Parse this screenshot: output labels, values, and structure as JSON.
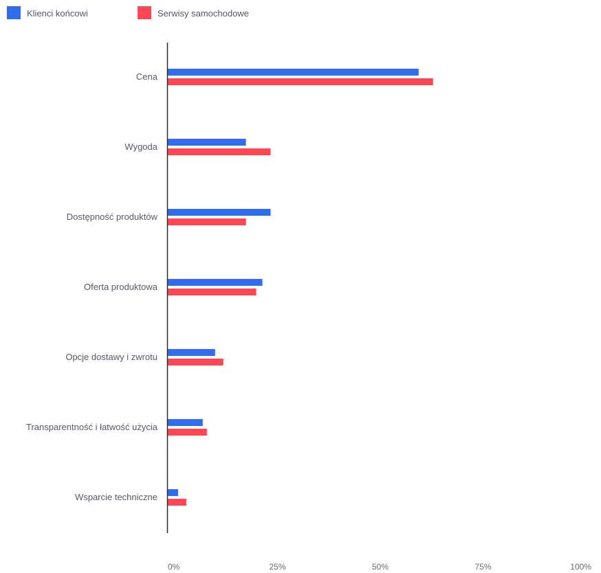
{
  "chart_data": {
    "type": "bar",
    "orientation": "horizontal",
    "categories": [
      "Cena",
      "Wygoda",
      "Dostępność produktów",
      "Oferta produktowa",
      "Opcje dostawy i zwrotu",
      "Transparentność i łatwość użycia",
      "Wsparcie techniczne"
    ],
    "series": [
      {
        "name": "Klienci końcowi",
        "color": "#2f6ded",
        "values": [
          61,
          19,
          25,
          23,
          11.5,
          8.5,
          2.5
        ]
      },
      {
        "name": "Serwisy samochodowe",
        "color": "#ff4654",
        "values": [
          64.5,
          25,
          19,
          21.5,
          13.5,
          9.5,
          4.5
        ]
      }
    ],
    "xlim": [
      0,
      100
    ],
    "xticks": [
      0,
      25,
      50,
      75,
      100
    ],
    "xtick_labels": [
      "0%",
      "25%",
      "50%",
      "75%",
      "100%"
    ],
    "legend_position": "top-left",
    "grid": false
  }
}
